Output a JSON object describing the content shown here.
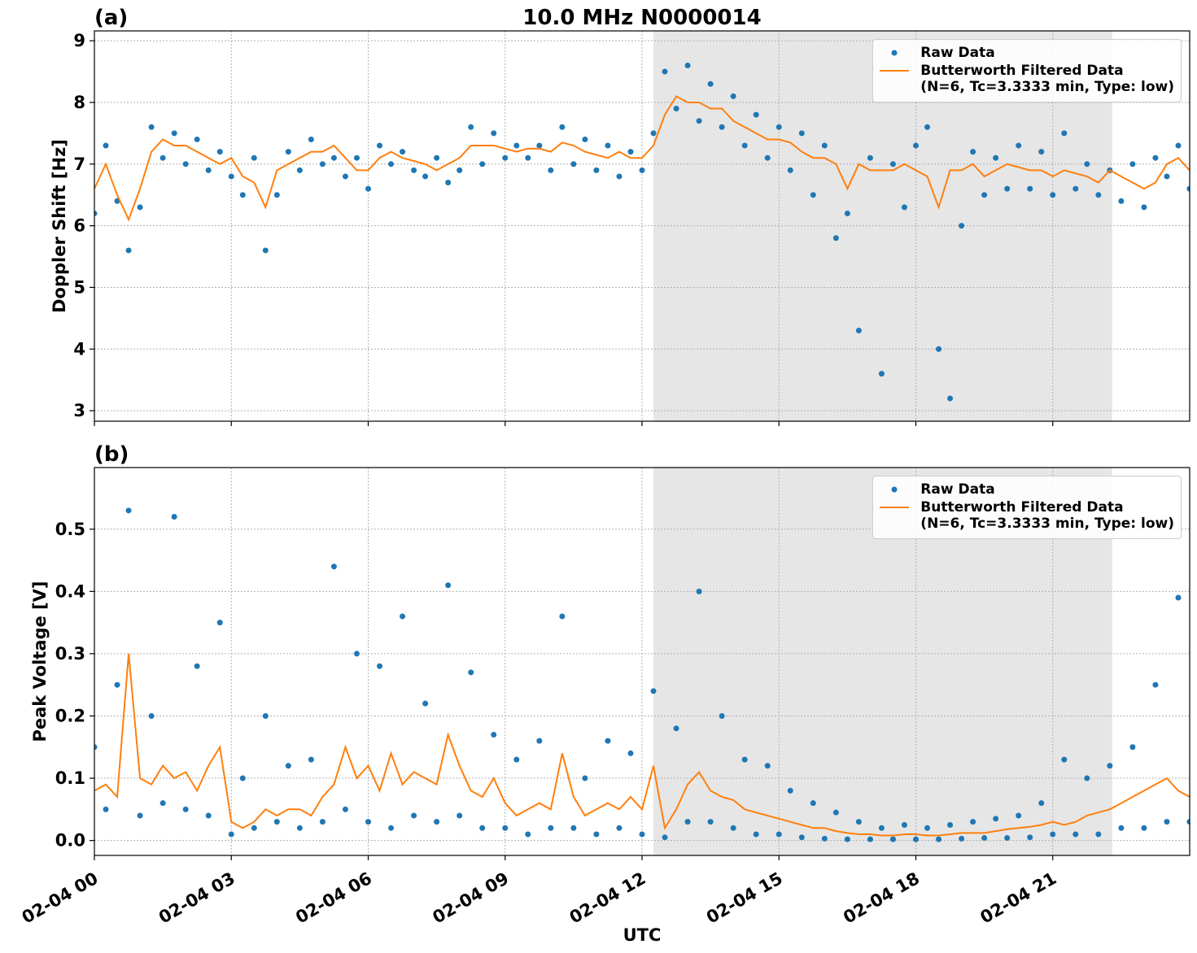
{
  "chart_data": [
    {
      "type": "scatter-line",
      "panel_label": "(a)",
      "title": "10.0 MHz N0000014",
      "ylabel": "Doppler Shift [Hz]",
      "x": [
        0,
        0.25,
        0.5,
        0.75,
        1,
        1.25,
        1.5,
        1.75,
        2,
        2.25,
        2.5,
        2.75,
        3,
        3.25,
        3.5,
        3.75,
        4,
        4.25,
        4.5,
        4.75,
        5,
        5.25,
        5.5,
        5.75,
        6,
        6.25,
        6.5,
        6.75,
        7,
        7.25,
        7.5,
        7.75,
        8,
        8.25,
        8.5,
        8.75,
        9,
        9.25,
        9.5,
        9.75,
        10,
        10.25,
        10.5,
        10.75,
        11,
        11.25,
        11.5,
        11.75,
        12,
        12.25,
        12.5,
        12.75,
        13,
        13.25,
        13.5,
        13.75,
        14,
        14.25,
        14.5,
        14.75,
        15,
        15.25,
        15.5,
        15.75,
        16,
        16.25,
        16.5,
        16.75,
        17,
        17.25,
        17.5,
        17.75,
        18,
        18.25,
        18.5,
        18.75,
        19,
        19.25,
        19.5,
        19.75,
        20,
        20.25,
        20.5,
        20.75,
        21,
        21.25,
        21.5,
        21.75,
        22,
        22.25,
        22.5,
        22.75,
        23,
        23.25,
        23.5,
        23.75,
        24
      ],
      "series": [
        {
          "name": "Raw Data",
          "style": "dots",
          "color": "#1f77b4",
          "values": [
            6.2,
            7.3,
            6.4,
            5.6,
            6.3,
            7.6,
            7.1,
            7.5,
            7.0,
            7.4,
            6.9,
            7.2,
            6.8,
            6.5,
            7.1,
            5.6,
            6.5,
            7.2,
            6.9,
            7.4,
            7.0,
            7.1,
            6.8,
            7.1,
            6.6,
            7.3,
            7.0,
            7.2,
            6.9,
            6.8,
            7.1,
            6.7,
            6.9,
            7.6,
            7.0,
            7.5,
            7.1,
            7.3,
            7.1,
            7.3,
            6.9,
            7.6,
            7.0,
            7.4,
            6.9,
            7.3,
            6.8,
            7.2,
            6.9,
            7.5,
            8.5,
            7.9,
            8.6,
            7.7,
            8.3,
            7.6,
            8.1,
            7.3,
            7.8,
            7.1,
            7.6,
            6.9,
            7.5,
            6.5,
            7.3,
            5.8,
            6.2,
            4.3,
            7.1,
            3.6,
            7.0,
            6.3,
            7.3,
            7.6,
            4.0,
            3.2,
            6.0,
            7.2,
            6.5,
            7.1,
            6.6,
            7.3,
            6.6,
            7.2,
            6.5,
            7.5,
            6.6,
            7.0,
            6.5,
            6.9,
            6.4,
            7.0,
            6.3,
            7.1,
            6.8,
            7.3,
            6.6
          ]
        },
        {
          "name": "Butterworth Filtered Data\n(N=6, Tc=3.3333 min, Type: low)",
          "style": "line",
          "color": "#ff7f0e",
          "values": [
            6.6,
            7.0,
            6.5,
            6.1,
            6.6,
            7.2,
            7.4,
            7.3,
            7.3,
            7.2,
            7.1,
            7.0,
            7.1,
            6.8,
            6.7,
            6.3,
            6.9,
            7.0,
            7.1,
            7.2,
            7.2,
            7.3,
            7.1,
            6.9,
            6.9,
            7.1,
            7.2,
            7.1,
            7.05,
            7.0,
            6.9,
            7.0,
            7.1,
            7.3,
            7.3,
            7.3,
            7.25,
            7.2,
            7.25,
            7.25,
            7.2,
            7.35,
            7.3,
            7.2,
            7.15,
            7.1,
            7.2,
            7.1,
            7.1,
            7.3,
            7.8,
            8.1,
            8.0,
            8.0,
            7.9,
            7.9,
            7.7,
            7.6,
            7.5,
            7.4,
            7.4,
            7.35,
            7.2,
            7.1,
            7.1,
            7.0,
            6.6,
            7.0,
            6.9,
            6.9,
            6.9,
            7.0,
            6.9,
            6.8,
            6.3,
            6.9,
            6.9,
            7.0,
            6.8,
            6.9,
            7.0,
            6.95,
            6.9,
            6.9,
            6.8,
            6.9,
            6.85,
            6.8,
            6.7,
            6.9,
            6.8,
            6.7,
            6.6,
            6.7,
            7.0,
            7.1,
            6.9
          ]
        }
      ],
      "xlim": [
        0,
        24
      ],
      "xticks": [
        0,
        3,
        6,
        9,
        12,
        15,
        18,
        21
      ],
      "show_xtick_labels": false,
      "ylim": [
        2.83,
        9.16
      ],
      "yticks": [
        3,
        4,
        5,
        6,
        7,
        8,
        9
      ],
      "grid": true,
      "legend": "upper right",
      "shaded_region": {
        "x": [
          12.25,
          22.3
        ],
        "color": "#e6e6e6"
      }
    },
    {
      "type": "scatter-line",
      "panel_label": "(b)",
      "ylabel": "Peak Voltage [V]",
      "xlabel": "UTC",
      "x": [
        0,
        0.25,
        0.5,
        0.75,
        1,
        1.25,
        1.5,
        1.75,
        2,
        2.25,
        2.5,
        2.75,
        3,
        3.25,
        3.5,
        3.75,
        4,
        4.25,
        4.5,
        4.75,
        5,
        5.25,
        5.5,
        5.75,
        6,
        6.25,
        6.5,
        6.75,
        7,
        7.25,
        7.5,
        7.75,
        8,
        8.25,
        8.5,
        8.75,
        9,
        9.25,
        9.5,
        9.75,
        10,
        10.25,
        10.5,
        10.75,
        11,
        11.25,
        11.5,
        11.75,
        12,
        12.25,
        12.5,
        12.75,
        13,
        13.25,
        13.5,
        13.75,
        14,
        14.25,
        14.5,
        14.75,
        15,
        15.25,
        15.5,
        15.75,
        16,
        16.25,
        16.5,
        16.75,
        17,
        17.25,
        17.5,
        17.75,
        18,
        18.25,
        18.5,
        18.75,
        19,
        19.25,
        19.5,
        19.75,
        20,
        20.25,
        20.5,
        20.75,
        21,
        21.25,
        21.5,
        21.75,
        22,
        22.25,
        22.5,
        22.75,
        23,
        23.25,
        23.5,
        23.75,
        24
      ],
      "series": [
        {
          "name": "Raw Data",
          "style": "dots",
          "color": "#1f77b4",
          "values": [
            0.15,
            0.05,
            0.25,
            0.53,
            0.04,
            0.2,
            0.06,
            0.52,
            0.05,
            0.28,
            0.04,
            0.35,
            0.01,
            0.1,
            0.02,
            0.2,
            0.03,
            0.12,
            0.02,
            0.13,
            0.03,
            0.44,
            0.05,
            0.3,
            0.03,
            0.28,
            0.02,
            0.36,
            0.04,
            0.22,
            0.03,
            0.41,
            0.04,
            0.27,
            0.02,
            0.17,
            0.02,
            0.13,
            0.01,
            0.16,
            0.02,
            0.36,
            0.02,
            0.1,
            0.01,
            0.16,
            0.02,
            0.14,
            0.01,
            0.24,
            0.005,
            0.18,
            0.03,
            0.4,
            0.03,
            0.2,
            0.02,
            0.13,
            0.01,
            0.12,
            0.01,
            0.08,
            0.005,
            0.06,
            0.003,
            0.045,
            0.002,
            0.03,
            0.002,
            0.02,
            0.002,
            0.025,
            0.002,
            0.02,
            0.002,
            0.025,
            0.003,
            0.03,
            0.004,
            0.035,
            0.004,
            0.04,
            0.005,
            0.06,
            0.01,
            0.13,
            0.01,
            0.1,
            0.01,
            0.12,
            0.02,
            0.15,
            0.02,
            0.25,
            0.03,
            0.39,
            0.03
          ]
        },
        {
          "name": "Butterworth Filtered Data\n(N=6, Tc=3.3333 min, Type: low)",
          "style": "line",
          "color": "#ff7f0e",
          "values": [
            0.08,
            0.09,
            0.07,
            0.3,
            0.1,
            0.09,
            0.12,
            0.1,
            0.11,
            0.08,
            0.12,
            0.15,
            0.03,
            0.02,
            0.03,
            0.05,
            0.04,
            0.05,
            0.05,
            0.04,
            0.07,
            0.09,
            0.15,
            0.1,
            0.12,
            0.08,
            0.14,
            0.09,
            0.11,
            0.1,
            0.09,
            0.17,
            0.12,
            0.08,
            0.07,
            0.1,
            0.06,
            0.04,
            0.05,
            0.06,
            0.05,
            0.14,
            0.07,
            0.04,
            0.05,
            0.06,
            0.05,
            0.07,
            0.05,
            0.12,
            0.02,
            0.05,
            0.09,
            0.11,
            0.08,
            0.07,
            0.065,
            0.05,
            0.045,
            0.04,
            0.035,
            0.03,
            0.025,
            0.02,
            0.02,
            0.015,
            0.012,
            0.01,
            0.01,
            0.008,
            0.008,
            0.01,
            0.01,
            0.008,
            0.008,
            0.01,
            0.012,
            0.012,
            0.012,
            0.015,
            0.018,
            0.02,
            0.022,
            0.025,
            0.03,
            0.025,
            0.03,
            0.04,
            0.045,
            0.05,
            0.06,
            0.07,
            0.08,
            0.09,
            0.1,
            0.08,
            0.07
          ]
        }
      ],
      "xlim": [
        0,
        24
      ],
      "xticks": [
        {
          "value": 0,
          "label": "02-04 00"
        },
        {
          "value": 3,
          "label": "02-04 03"
        },
        {
          "value": 6,
          "label": "02-04 06"
        },
        {
          "value": 9,
          "label": "02-04 09"
        },
        {
          "value": 12,
          "label": "02-04 12"
        },
        {
          "value": 15,
          "label": "02-04 15"
        },
        {
          "value": 18,
          "label": "02-04 18"
        },
        {
          "value": 21,
          "label": "02-04 21"
        }
      ],
      "show_xtick_labels": true,
      "ylim": [
        -0.024,
        0.599
      ],
      "yticks": [
        {
          "value": 0,
          "label": "0.0"
        },
        0.1,
        0.2,
        0.3,
        0.4,
        0.5
      ],
      "grid": true,
      "legend": "upper right",
      "shaded_region": {
        "x": [
          12.25,
          22.3
        ],
        "color": "#e6e6e6"
      }
    }
  ]
}
